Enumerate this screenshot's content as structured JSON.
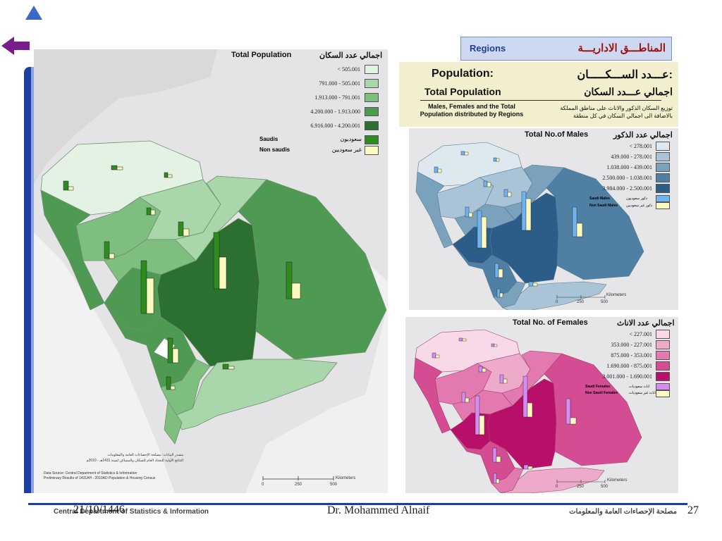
{
  "nav": {
    "up_icon": "triangle-up-icon",
    "back_icon": "arrow-left-icon"
  },
  "main_map": {
    "title_en": "Total Population",
    "title_ar": "اجمالي عدد السكان",
    "legend": [
      {
        "label": "< 505.001",
        "color": "#e3f2e3"
      },
      {
        "label": "791.000 - 505.001",
        "color": "#a9d6aa"
      },
      {
        "label": "1.913.000 - 791.001",
        "color": "#7ebf80"
      },
      {
        "label": "4.200.000 - 1.913.000",
        "color": "#4f9a52"
      },
      {
        "label": "6.916.000 - 4.200.001",
        "color": "#2b7030"
      }
    ],
    "bars_legend": [
      {
        "en": "Saudis",
        "ar": "سعوديون",
        "color": "#2e8b1e"
      },
      {
        "en": "Non saudis",
        "ar": "غير سعوديين",
        "color": "#fbf8c0"
      }
    ],
    "source_ar_1": "مصدر البيانات: مصلحة الإحصاءات العامة والمعلومات",
    "source_ar_2": "النتائج الأولية للتعداد العام للسكان والمساكن لسنة 1431هـ - 2010م",
    "source_en_1": "Data Source: Central Department of Statistics & Information",
    "source_en_2": "Preliminary Results of 1431AH - 2010AD Population & Housing Census",
    "scale": {
      "ticks": [
        "0",
        "250",
        "500"
      ],
      "unit": "Kilometers"
    }
  },
  "regions_box": {
    "en": "Regions",
    "ar": "المناطـــق الاداريـــة"
  },
  "population_box": {
    "title_en": "Population:",
    "title_ar": "عـــدد الســـكـــــان:",
    "sub_en": "Total Population",
    "sub_ar": "اجمالي عـــدد السكان",
    "desc_en": "Males, Females and the Total Population distributed by Regions",
    "desc_ar": "توزيع السكان الذكور والاناث على مناطق المملكة بالاضافة الى اجمالي السكان في كل منطقة"
  },
  "males_map": {
    "title_en": "Total  No.of Males",
    "title_ar": "اجمالي عدد الذكور",
    "legend": [
      {
        "label": "< 278.001",
        "color": "#dde8ef"
      },
      {
        "label": "439.000 - 278.001",
        "color": "#a8c4d6"
      },
      {
        "label": "1.038.000 - 439.001",
        "color": "#7ba2bd"
      },
      {
        "label": "2.500.000 - 1.038.001",
        "color": "#4f7fa3"
      },
      {
        "label": "3.984.000 - 2.500.001",
        "color": "#2b5d88"
      }
    ],
    "bars_legend": [
      {
        "en": "Saudi Males",
        "ar": "ذكور سعوديون",
        "color": "#6fb3f0"
      },
      {
        "en": "Non Saudi Males",
        "ar": "ذكور غير سعوديين",
        "color": "#fbf8c0"
      }
    ],
    "scale": {
      "ticks": [
        "0",
        "250",
        "500"
      ],
      "unit": "Kilometers"
    }
  },
  "females_map": {
    "title_en": "Total No. of  Females",
    "title_ar": "اجمالي عدد الاناث",
    "legend": [
      {
        "label": "< 227.001",
        "color": "#f7d9e8"
      },
      {
        "label": "353.000 - 227.001",
        "color": "#eeaacb"
      },
      {
        "label": "875.000 - 353.001",
        "color": "#e27aaf"
      },
      {
        "label": "1.690.000 - 875.001",
        "color": "#d44c92"
      },
      {
        "label": "3.001.000 - 1.690.001",
        "color": "#b80f6a"
      }
    ],
    "bars_legend": [
      {
        "en": "Saudi Females",
        "ar": "اناث سعوديات",
        "color": "#d48cf0"
      },
      {
        "en": "Non Saudi Females",
        "ar": "اناث غير سعوديات",
        "color": "#fbf8c0"
      }
    ],
    "scale": {
      "ticks": [
        "0",
        "250",
        "500"
      ],
      "unit": "Kilometers"
    }
  },
  "footer": {
    "date": "21/10/1446",
    "dept_en": "Central Department of Statistics & Information",
    "author": "Dr. Mohammed Alnaif",
    "dept_ar": "مصلحة الإحصاءات العامة والمعلومات",
    "page": "27"
  }
}
